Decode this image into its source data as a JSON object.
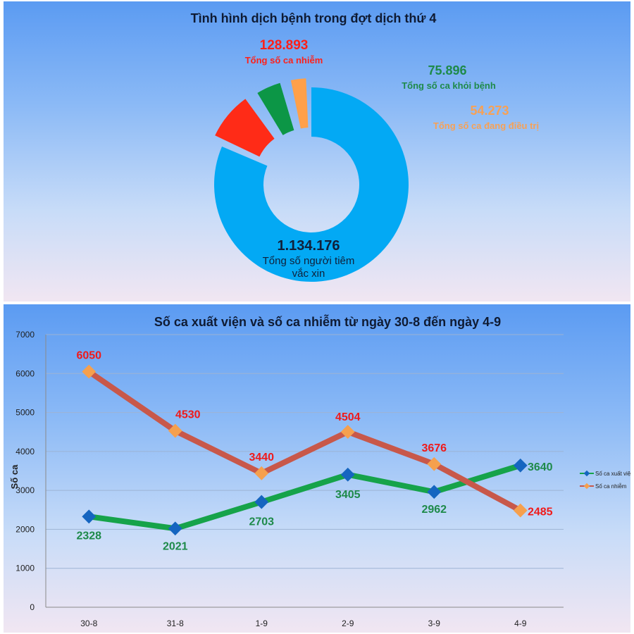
{
  "chart_data": [
    {
      "type": "pie",
      "variant": "donut-exploded",
      "title": "Tình hình dịch bệnh trong đợt dịch thứ 4",
      "slices": [
        {
          "name": "Tổng số người tiêm vắc xin",
          "value_label": "1.134.176",
          "value": 1134176,
          "color": "#03a9f4"
        },
        {
          "name": "Tổng số ca nhiễm",
          "value_label": "128.893",
          "value": 128893,
          "color": "#ff2b17"
        },
        {
          "name": "Tổng số ca khỏi bệnh",
          "value_label": "75.896",
          "value": 75896,
          "color": "#0c9646"
        },
        {
          "name": "Tổng số ca đang điều trị",
          "value_label": "54.273",
          "value": 54273,
          "color": "#ffa04a"
        }
      ],
      "vaccine_label_line1": "Tổng số người tiêm",
      "vaccine_label_line2": "vắc xin"
    },
    {
      "type": "line",
      "title": "Số ca xuất viện và số ca nhiễm từ ngày 30-8 đến ngày 4-9",
      "ylabel": "Số ca",
      "xlabel": "",
      "ylim": [
        0,
        7000
      ],
      "yticks": [
        0,
        1000,
        2000,
        3000,
        4000,
        5000,
        6000,
        7000
      ],
      "categories": [
        "30-8",
        "31-8",
        "1-9",
        "2-9",
        "3-9",
        "4-9"
      ],
      "series": [
        {
          "name": "Số ca xuất viện",
          "legend_text": "Số ca xuất việ",
          "line_color": "#16a34a",
          "marker_color": "#1565c0",
          "label_color": "#1e8a4a",
          "values": [
            2328,
            2021,
            2703,
            3405,
            2962,
            3640
          ]
        },
        {
          "name": "Số ca nhiễm",
          "legend_text": "Số ca nhiễm",
          "line_color": "#c8584a",
          "marker_color": "#f5a04e",
          "label_color": "#f01a1a",
          "values": [
            6050,
            4530,
            3440,
            4504,
            3676,
            2485
          ]
        }
      ],
      "legend_position": "right",
      "grid": true
    }
  ]
}
